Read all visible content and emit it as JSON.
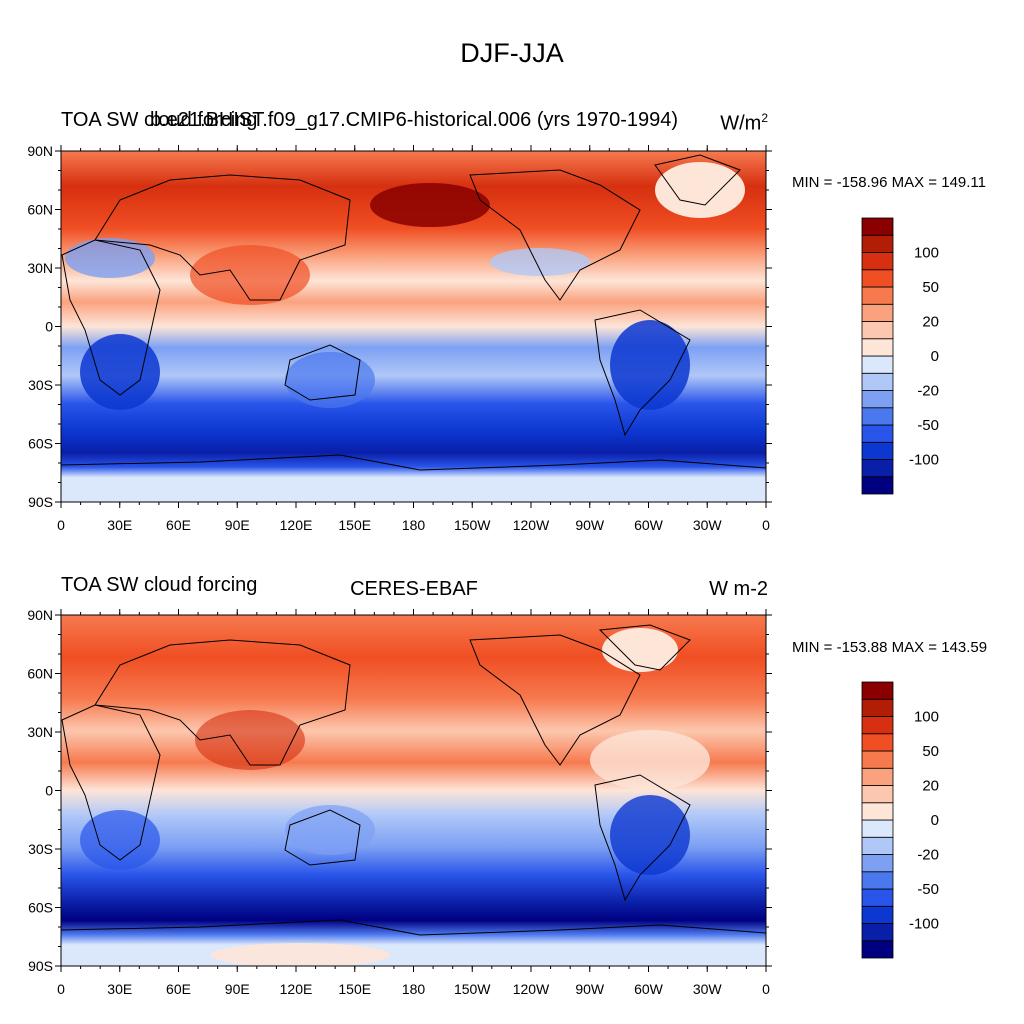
{
  "title": "DJF-JJA",
  "panels": [
    {
      "left_label": "TOA SW cloud forcing",
      "center_label": "b.e21.BHIST.f09_g17.CMIP6-historical.006 (yrs 1970-1994)",
      "units": "W/m",
      "units_sup": "2",
      "minmax": "MIN = -158.96 MAX = 149.11"
    },
    {
      "left_label": "TOA SW cloud forcing",
      "center_label": "CERES-EBAF",
      "units": "W m-2",
      "units_sup": "",
      "minmax": "MIN = -153.88 MAX = 143.59"
    }
  ],
  "lat_labels": [
    "90N",
    "60N",
    "30N",
    "0",
    "30S",
    "60S",
    "90S"
  ],
  "lon_labels": [
    "0",
    "30E",
    "60E",
    "90E",
    "120E",
    "150E",
    "180",
    "150W",
    "120W",
    "90W",
    "60W",
    "30W",
    "0"
  ],
  "colorbar": {
    "levels": [
      "-100",
      "-50",
      "-20",
      "0",
      "20",
      "50",
      "100"
    ],
    "colors": [
      "#000080",
      "#0a1fa8",
      "#0c37d0",
      "#2a55ea",
      "#4c78ee",
      "#7da0f3",
      "#b0c8f8",
      "#dbe8fc",
      "#fde5d8",
      "#fcc7ae",
      "#faa27e",
      "#f77a4f",
      "#f04e23",
      "#d63010",
      "#b21e05",
      "#8a0000"
    ]
  }
}
